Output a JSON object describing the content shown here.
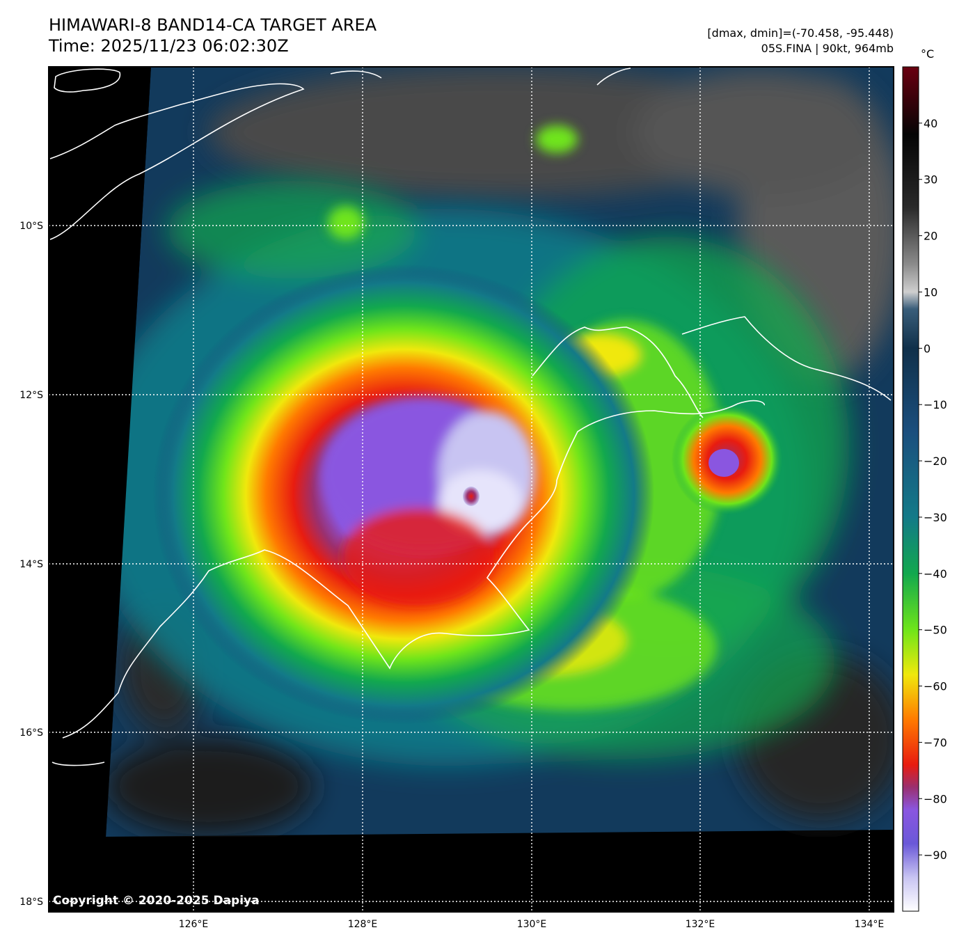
{
  "header": {
    "title": "HIMAWARI-8 BAND14-CA TARGET AREA",
    "time": "Time: 2025/11/23 06:02:30Z",
    "range": "[dmax, dmin]=(-70.458, -95.448)",
    "storm": "05S.FINA | 90kt, 964mb"
  },
  "map": {
    "lat_labels": [
      "10°S",
      "12°S",
      "14°S",
      "16°S",
      "18°S"
    ],
    "lon_labels": [
      "126°E",
      "128°E",
      "130°E",
      "132°E",
      "134°E"
    ],
    "copyright": "Copyright © 2020-2025 Dapiya"
  },
  "colorbar": {
    "unit": "°C",
    "ticks": [
      "40",
      "30",
      "20",
      "10",
      "0",
      "−10",
      "−20",
      "−30",
      "−40",
      "−50",
      "−60",
      "−70",
      "−80",
      "−90"
    ],
    "tick_values": [
      40,
      30,
      20,
      10,
      0,
      -10,
      -20,
      -30,
      -40,
      -50,
      -60,
      -70,
      -80,
      -90
    ],
    "range": [
      -100,
      50
    ],
    "stops": [
      {
        "v": 50,
        "c": "#6a0010"
      },
      {
        "v": 38,
        "c": "#050505"
      },
      {
        "v": 25,
        "c": "#2a2a2a"
      },
      {
        "v": 15,
        "c": "#8a8a8a"
      },
      {
        "v": 10,
        "c": "#cfcfcf"
      },
      {
        "v": 7,
        "c": "#3a5e7a"
      },
      {
        "v": 0,
        "c": "#10304a"
      },
      {
        "v": -15,
        "c": "#1b4f7e"
      },
      {
        "v": -30,
        "c": "#137a88"
      },
      {
        "v": -40,
        "c": "#12a84e"
      },
      {
        "v": -50,
        "c": "#6fe51a"
      },
      {
        "v": -58,
        "c": "#f0e80c"
      },
      {
        "v": -66,
        "c": "#ff7a00"
      },
      {
        "v": -74,
        "c": "#e81c10"
      },
      {
        "v": -78,
        "c": "#9a3070"
      },
      {
        "v": -82,
        "c": "#8a56e0"
      },
      {
        "v": -88,
        "c": "#6a58d8"
      },
      {
        "v": -94,
        "c": "#c8c4f2"
      },
      {
        "v": -100,
        "c": "#ffffff"
      }
    ]
  },
  "colors": {
    "background": "#000000",
    "coastline": "#ffffff",
    "grid": "#ffffff",
    "cold_cloud": "#8a56e0",
    "very_cold": "#e6e4fb",
    "red_ring": "#e81c10",
    "orange": "#ff8a00",
    "yellow": "#f2e60c",
    "green": "#4fd620",
    "teal": "#137a88",
    "blue": "#1b4f7e",
    "land_gray": "#5a5a5a"
  }
}
